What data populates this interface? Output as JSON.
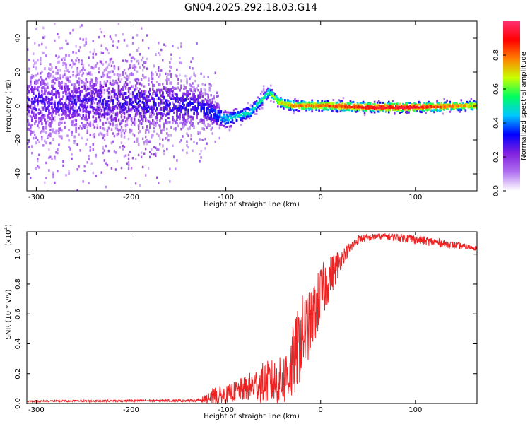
{
  "title": "GN04.2025.292.18.03.G14",
  "chart_data": [
    {
      "type": "heatmap",
      "title": "GN04.2025.292.18.03.G14",
      "xlabel": "Height of straight line (km)",
      "ylabel": "Frequency (Hz)",
      "xlim": [
        -310,
        165
      ],
      "ylim": [
        -50,
        50
      ],
      "xticks": [
        -300,
        -200,
        -100,
        0,
        100
      ],
      "yticks": [
        -40,
        -20,
        0,
        20,
        40
      ],
      "colorbar": {
        "label": "Normalized spectral amplitude",
        "range": [
          0,
          1
        ],
        "ticks": [
          "0.0",
          "0.2",
          "0.4",
          "0.6",
          "0.8"
        ],
        "colors": [
          "#ffffff",
          "#b070f0",
          "#8020e0",
          "#0000ff",
          "#00c8ff",
          "#00ff60",
          "#c8ff00",
          "#ff8000",
          "#ff0000",
          "#ff3070"
        ]
      },
      "ridge": [
        {
          "x": -310,
          "f": 2,
          "amp": 0.3,
          "spread": 28
        },
        {
          "x": -200,
          "f": 2,
          "amp": 0.32,
          "spread": 28
        },
        {
          "x": -130,
          "f": 0,
          "amp": 0.35,
          "spread": 18
        },
        {
          "x": -100,
          "f": -8,
          "amp": 0.45,
          "spread": 8
        },
        {
          "x": -75,
          "f": -4,
          "amp": 0.5,
          "spread": 6
        },
        {
          "x": -55,
          "f": 8,
          "amp": 0.55,
          "spread": 5
        },
        {
          "x": -45,
          "f": 2,
          "amp": 0.7,
          "spread": 3
        },
        {
          "x": -30,
          "f": 0,
          "amp": 0.75,
          "spread": 2
        },
        {
          "x": 0,
          "f": 0,
          "amp": 0.8,
          "spread": 2
        },
        {
          "x": 50,
          "f": -1,
          "amp": 0.9,
          "spread": 2
        },
        {
          "x": 90,
          "f": -1,
          "amp": 0.92,
          "spread": 2
        },
        {
          "x": 165,
          "f": 0,
          "amp": 0.7,
          "spread": 2
        }
      ]
    },
    {
      "type": "line",
      "xlabel": "Height of straight line (km)",
      "ylabel": "SNR (10 * v/v)",
      "yscale_label": "(x10",
      "yscale_exp": "4",
      "xlim": [
        -310,
        165
      ],
      "ylim": [
        0,
        1.15
      ],
      "xticks": [
        -300,
        -200,
        -100,
        0,
        100
      ],
      "yticks": [
        "0.0",
        "0.2",
        "0.4",
        "0.6",
        "0.8",
        "1.0"
      ],
      "color": "#ee2222",
      "envelope": {
        "x": [
          -310,
          -130,
          -112,
          -100,
          -80,
          -60,
          -40,
          -30,
          -20,
          -10,
          0,
          10,
          25,
          40,
          60,
          90,
          120,
          165
        ],
        "mean": [
          0.015,
          0.02,
          0.04,
          0.06,
          0.1,
          0.14,
          0.15,
          0.25,
          0.45,
          0.55,
          0.72,
          0.85,
          1.0,
          1.1,
          1.12,
          1.11,
          1.08,
          1.04
        ],
        "noise": [
          0.006,
          0.008,
          0.05,
          0.04,
          0.06,
          0.1,
          0.12,
          0.18,
          0.2,
          0.15,
          0.15,
          0.1,
          0.05,
          0.03,
          0.02,
          0.03,
          0.03,
          0.015
        ]
      }
    }
  ]
}
